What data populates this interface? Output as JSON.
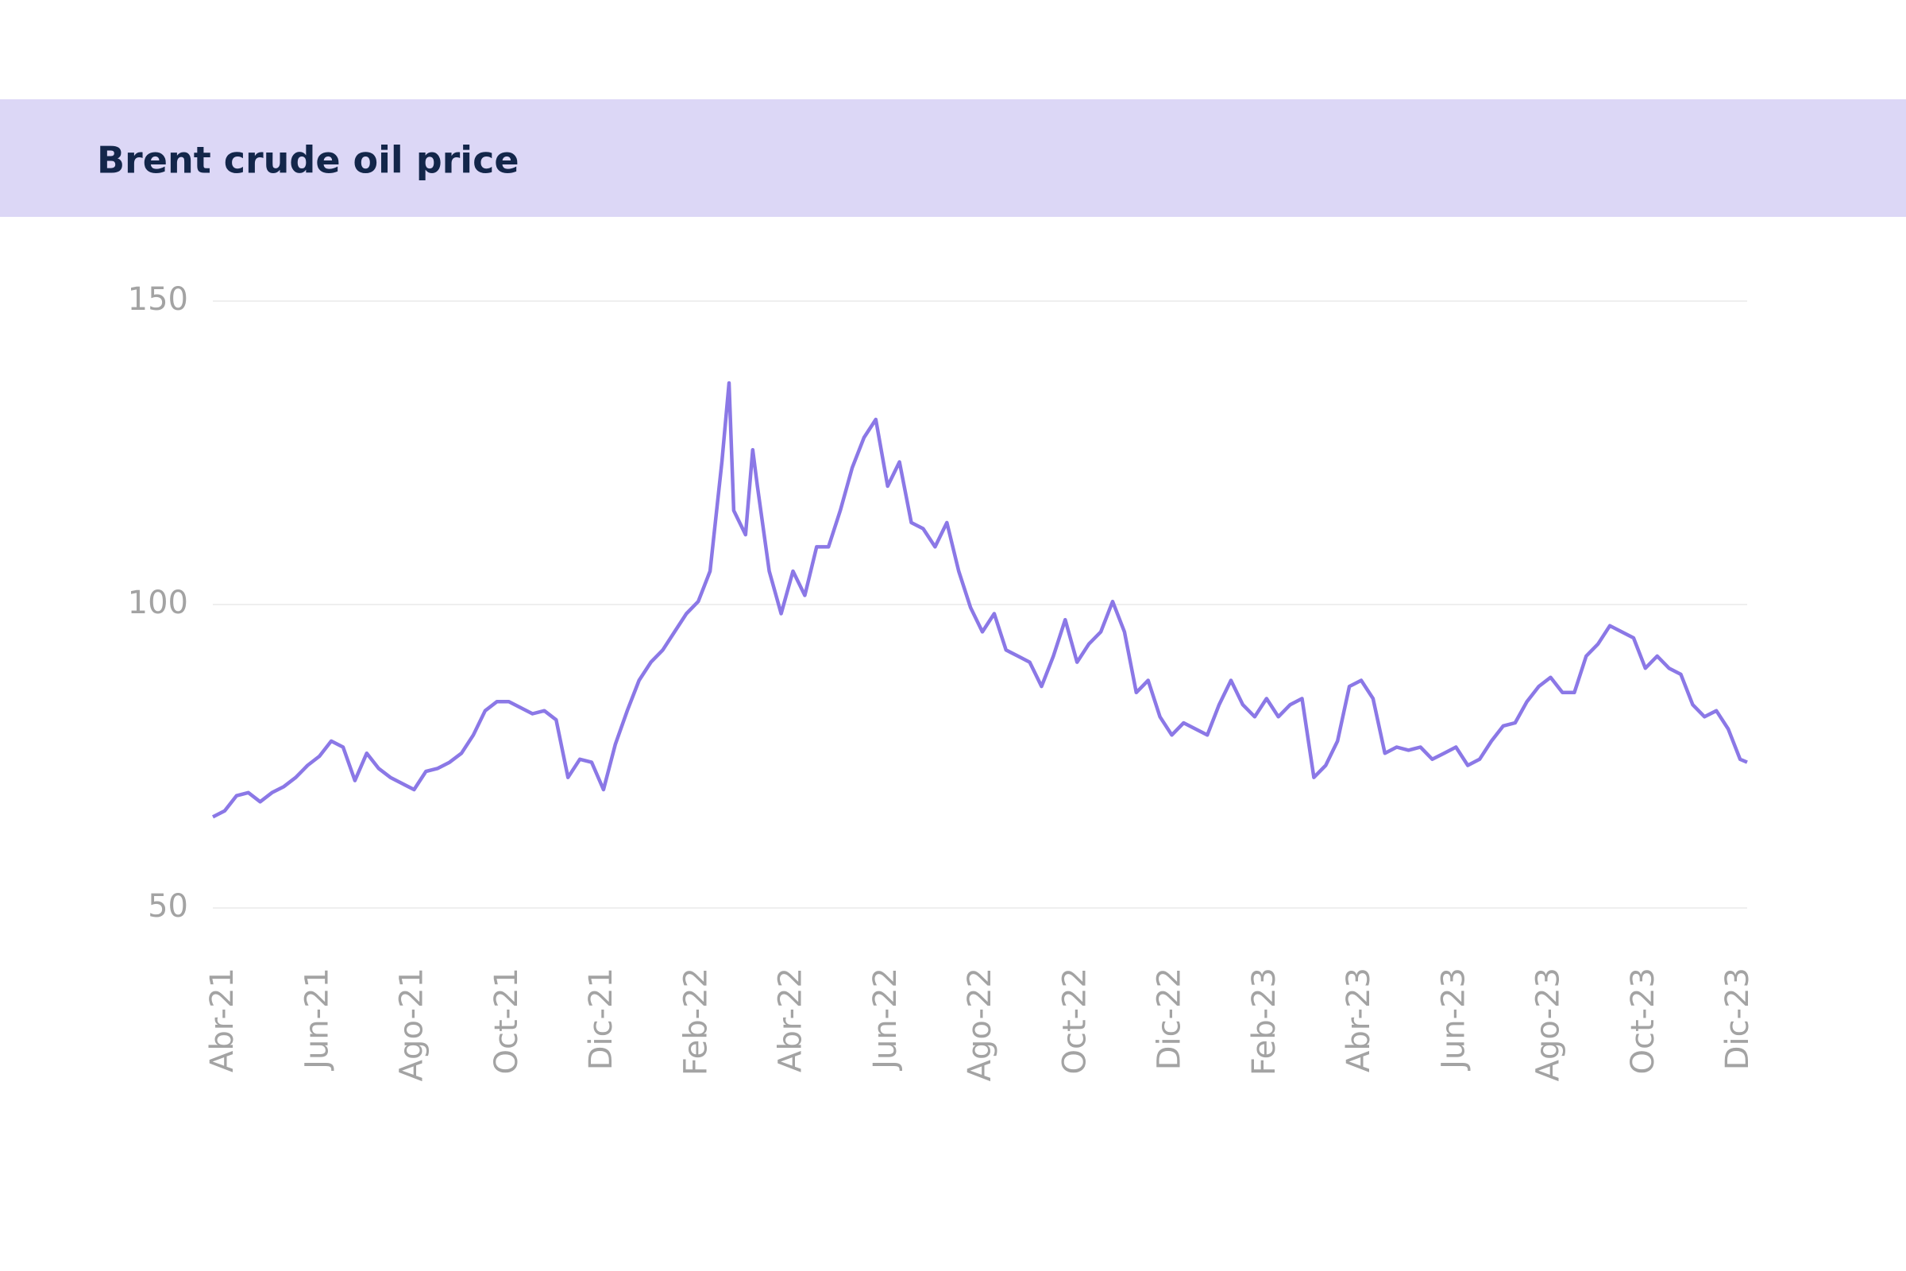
{
  "chart_data": {
    "type": "line",
    "title": "Brent crude oil price",
    "x": [
      0,
      0.25,
      0.5,
      0.75,
      1,
      1.25,
      1.5,
      1.75,
      2,
      2.25,
      2.5,
      2.75,
      3,
      3.25,
      3.5,
      3.75,
      4,
      4.25,
      4.5,
      4.75,
      5,
      5.25,
      5.5,
      5.75,
      6,
      6.25,
      6.5,
      6.75,
      7,
      7.25,
      7.5,
      7.75,
      8,
      8.25,
      8.5,
      8.75,
      9,
      9.25,
      9.5,
      9.75,
      10,
      10.25,
      10.5,
      10.75,
      10.9,
      11,
      11.25,
      11.4,
      11.5,
      11.75,
      12,
      12.25,
      12.5,
      12.75,
      13,
      13.25,
      13.5,
      13.75,
      14,
      14.25,
      14.5,
      14.75,
      15,
      15.25,
      15.5,
      15.75,
      16,
      16.25,
      16.5,
      16.75,
      17,
      17.25,
      17.5,
      17.75,
      18,
      18.25,
      18.5,
      18.75,
      19,
      19.25,
      19.5,
      19.75,
      20,
      20.25,
      20.5,
      20.75,
      21,
      21.25,
      21.5,
      21.75,
      22,
      22.25,
      22.5,
      22.75,
      23,
      23.25,
      23.5,
      23.75,
      24,
      24.25,
      24.5,
      24.75,
      25,
      25.25,
      25.5,
      25.75,
      26,
      26.25,
      26.5,
      26.75,
      27,
      27.25,
      27.5,
      27.75,
      28,
      28.25,
      28.5,
      28.75,
      29,
      29.25,
      29.5,
      29.75,
      30,
      30.25,
      30.5,
      30.75,
      31,
      31.25,
      31.5,
      31.75,
      32,
      32.25,
      32.4
    ],
    "series": [
      {
        "color": "#8b78e6",
        "values": [
          65,
          66,
          68.5,
          69,
          67.5,
          69,
          70,
          71.5,
          73.5,
          75,
          77.5,
          76.5,
          71,
          75.5,
          73,
          71.5,
          70.5,
          69.5,
          72.5,
          73,
          74,
          75.5,
          78.5,
          82.5,
          84,
          84,
          83,
          82,
          82.5,
          81,
          71.5,
          74.5,
          74,
          69.5,
          77,
          82.5,
          87.5,
          90.5,
          92.5,
          95.5,
          98.5,
          100.5,
          105.5,
          123.5,
          136.5,
          115.5,
          111.5,
          125.5,
          119.5,
          105.5,
          98.5,
          105.5,
          101.5,
          109.5,
          109.5,
          115.5,
          122.5,
          127.5,
          130.5,
          119.5,
          123.5,
          113.5,
          112.5,
          109.5,
          113.5,
          105.5,
          99.5,
          95.5,
          98.5,
          92.5,
          91.5,
          90.5,
          86.5,
          91.5,
          97.5,
          90.5,
          93.5,
          95.5,
          100.5,
          95.5,
          85.5,
          87.5,
          81.5,
          78.5,
          80.5,
          79.5,
          78.5,
          83.5,
          87.5,
          83.5,
          81.5,
          84.5,
          81.5,
          83.5,
          84.5,
          71.5,
          73.5,
          77.5,
          86.5,
          87.5,
          84.5,
          75.5,
          76.5,
          76,
          76.5,
          74.5,
          75.5,
          76.5,
          73.5,
          74.5,
          77.5,
          80,
          80.5,
          84,
          86.5,
          88,
          85.5,
          85.5,
          91.5,
          93.5,
          96.5,
          95.5,
          94.5,
          89.5,
          91.5,
          89.5,
          88.5,
          83.5,
          81.5,
          82.5,
          79.5,
          74.5,
          74
        ]
      }
    ],
    "xlim": [
      0,
      32.4
    ],
    "xticks": [
      {
        "value": 0,
        "label": "Abr-21"
      },
      {
        "value": 2,
        "label": "Jun-21"
      },
      {
        "value": 4,
        "label": "Ago-21"
      },
      {
        "value": 6,
        "label": "Oct-21"
      },
      {
        "value": 8,
        "label": "Dic-21"
      },
      {
        "value": 10,
        "label": "Feb-22"
      },
      {
        "value": 12,
        "label": "Abr-22"
      },
      {
        "value": 14,
        "label": "Jun-22"
      },
      {
        "value": 16,
        "label": "Ago-22"
      },
      {
        "value": 18,
        "label": "Oct-22"
      },
      {
        "value": 20,
        "label": "Dic-22"
      },
      {
        "value": 22,
        "label": "Feb-23"
      },
      {
        "value": 24,
        "label": "Abr-23"
      },
      {
        "value": 26,
        "label": "Jun-23"
      },
      {
        "value": 28,
        "label": "Ago-23"
      },
      {
        "value": 30,
        "label": "Oct-23"
      },
      {
        "value": 32,
        "label": "Dic-23"
      }
    ],
    "ylim": [
      50,
      150
    ],
    "yticks": [
      50,
      100,
      150
    ],
    "grid": true
  }
}
